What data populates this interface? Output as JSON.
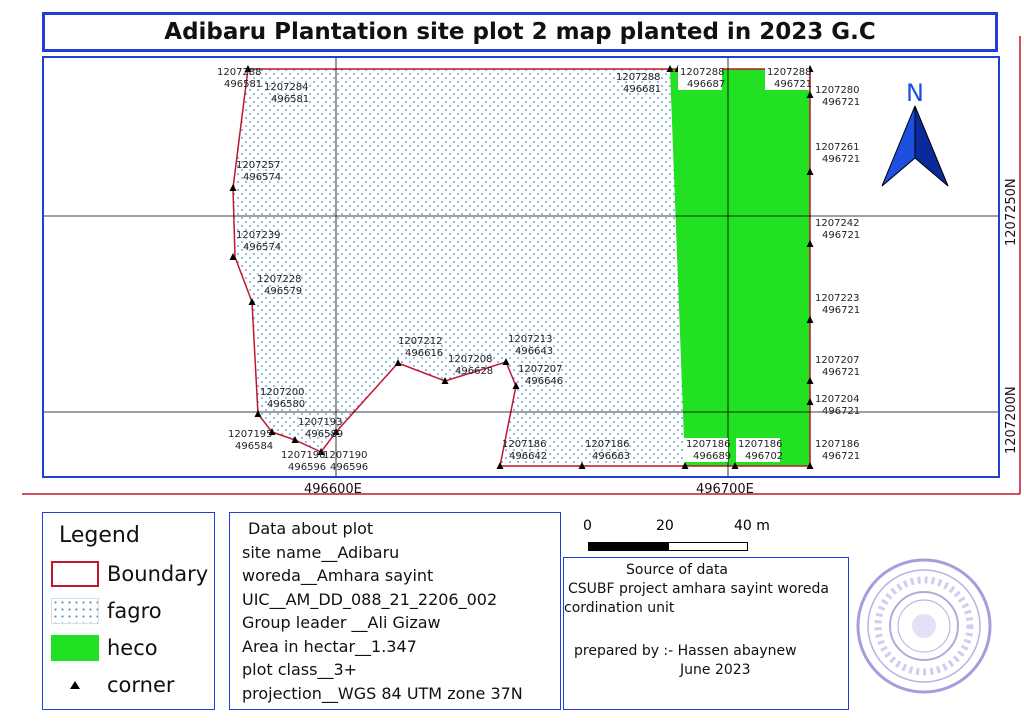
{
  "title": "Adibaru Plantation site plot 2 map planted in 2023 G.C",
  "map": {
    "grid_y_labels": [
      "1207250N",
      "1207200N"
    ],
    "grid_x_labels": [
      "496600E",
      "496700E"
    ],
    "north_label": "N",
    "colors": {
      "boundary": "#c0162e",
      "fagro_dots": "#4a90c8",
      "heco": "#22e022",
      "grid": "#000000",
      "frame": "#1f3fd6"
    },
    "labels": [
      {
        "n": "1207288",
        "e": "496581"
      },
      {
        "n": "1207284",
        "e": "496581"
      },
      {
        "n": "1207288",
        "e": "496681"
      },
      {
        "n": "1207288",
        "e": "496687"
      },
      {
        "n": "1207288",
        "e": "496721"
      },
      {
        "n": "1207280",
        "e": "496721"
      },
      {
        "n": "1207257",
        "e": "496574"
      },
      {
        "n": "1207261",
        "e": "496721"
      },
      {
        "n": "1207239",
        "e": "496574"
      },
      {
        "n": "1207242",
        "e": "496721"
      },
      {
        "n": "1207228",
        "e": "496579"
      },
      {
        "n": "1207223",
        "e": "496721"
      },
      {
        "n": "1207212",
        "e": "496616"
      },
      {
        "n": "1207213",
        "e": "496643"
      },
      {
        "n": "1207208",
        "e": "496628"
      },
      {
        "n": "1207207",
        "e": "496646"
      },
      {
        "n": "1207207",
        "e": "496721"
      },
      {
        "n": "1207200",
        "e": "496580"
      },
      {
        "n": "1207204",
        "e": "496721"
      },
      {
        "n": "1207193",
        "e": "496589"
      },
      {
        "n": "1207195",
        "e": "496584"
      },
      {
        "n": "1207190",
        "e": "496596"
      },
      {
        "n": "1207190",
        "e": "496596"
      },
      {
        "n": "1207186",
        "e": "496642"
      },
      {
        "n": "1207186",
        "e": "496663"
      },
      {
        "n": "1207186",
        "e": "496689"
      },
      {
        "n": "1207186",
        "e": "496702"
      },
      {
        "n": "1207186",
        "e": "496721"
      }
    ]
  },
  "scale": {
    "ticks": [
      "0",
      "20",
      "40 m"
    ]
  },
  "legend": {
    "title": "Legend",
    "items": [
      {
        "label": "Boundary",
        "color": "#c0162e"
      },
      {
        "label": "fagro",
        "color": "#4a90c8"
      },
      {
        "label": "heco",
        "color": "#22e022"
      },
      {
        "label": "corner",
        "color": "#000000"
      }
    ]
  },
  "plot_info": {
    "heading": "Data about plot",
    "lines": [
      "site name__Adibaru",
      "woreda__Amhara sayint",
      "UIC__AM_DD_088_21_2206_002",
      "Group leader __Ali Gizaw",
      "Area in hectar__1.347",
      "plot class__3+",
      "projection__WGS 84 UTM zone 37N"
    ]
  },
  "source": {
    "heading": "Source of data",
    "line1": "CSUBF project amhara sayint woreda",
    "line2": "cordination unit",
    "prepared": "prepared by :- Hassen abaynew",
    "date": "June 2023"
  }
}
